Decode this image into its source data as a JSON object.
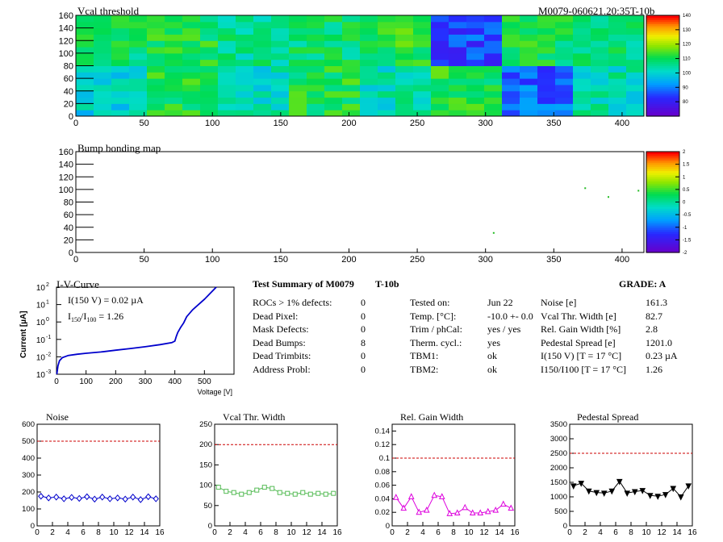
{
  "chart_data": [
    {
      "type": "heatmap",
      "title": "Vcal threshold",
      "module_label": "M0079-060621.20:35T-10b",
      "xlim": [
        0,
        416
      ],
      "ylim": [
        0,
        160
      ],
      "x_ticks": [
        0,
        50,
        100,
        150,
        200,
        250,
        300,
        350,
        400
      ],
      "y_ticks": [
        0,
        20,
        40,
        60,
        80,
        100,
        120,
        140,
        160
      ],
      "colorbar_ticks": [
        80,
        90,
        100,
        110,
        120,
        130,
        140
      ],
      "colorbar_range": [
        70,
        140
      ],
      "roc_means": {
        "top": [
          108,
          111,
          106,
          108,
          112,
          85,
          110,
          107
        ],
        "bottom": [
          100,
          111,
          102,
          111,
          103,
          111,
          88,
          103
        ]
      }
    },
    {
      "type": "heatmap",
      "title": "Bump bonding map",
      "xlim": [
        0,
        416
      ],
      "ylim": [
        0,
        160
      ],
      "x_ticks": [
        0,
        50,
        100,
        150,
        200,
        250,
        300,
        350,
        400
      ],
      "y_ticks": [
        0,
        20,
        40,
        60,
        80,
        100,
        120,
        140,
        160
      ],
      "colorbar_ticks": [
        -2,
        -1.5,
        -1,
        -0.5,
        0,
        0.5,
        1,
        1.5,
        2
      ],
      "colorbar_range": [
        -2,
        2
      ],
      "points": [
        [
          373,
          102
        ],
        [
          390,
          88
        ],
        [
          412,
          98
        ],
        [
          306,
          31
        ]
      ]
    },
    {
      "type": "line",
      "title": "I-V-Curve",
      "ylabel": "Current [µA]",
      "xlabel": "Voltage [V]",
      "yscale": "log",
      "xlim": [
        0,
        600
      ],
      "ylim": [
        0.001,
        100
      ],
      "x_ticks": [
        0,
        100,
        200,
        300,
        400,
        500
      ],
      "y_tick_exponents": [
        -3,
        -2,
        -1,
        0,
        1,
        2
      ],
      "annotation_current": "I(150 V) = 0.02 µA",
      "annotation_ratio_value": "1.26",
      "x": [
        1,
        5,
        10,
        20,
        40,
        70,
        100,
        150,
        200,
        250,
        300,
        350,
        390,
        400,
        405,
        410,
        420,
        430,
        440,
        460,
        500,
        540
      ],
      "y": [
        0.001,
        0.003,
        0.006,
        0.009,
        0.012,
        0.014,
        0.016,
        0.019,
        0.024,
        0.03,
        0.038,
        0.05,
        0.065,
        0.08,
        0.15,
        0.25,
        0.5,
        0.9,
        2,
        5,
        20,
        100
      ]
    },
    {
      "type": "line",
      "title": "Noise",
      "xlim": [
        0,
        16
      ],
      "ylim": [
        0,
        600
      ],
      "x_ticks": [
        0,
        2,
        4,
        6,
        8,
        10,
        12,
        14,
        16
      ],
      "y_ticks": [
        0,
        100,
        200,
        300,
        400,
        500,
        600
      ],
      "threshold": 500,
      "color": "#0000cc",
      "marker": "diamond",
      "x": [
        0.5,
        1.5,
        2.5,
        3.5,
        4.5,
        5.5,
        6.5,
        7.5,
        8.5,
        9.5,
        10.5,
        11.5,
        12.5,
        13.5,
        14.5,
        15.5
      ],
      "values": [
        175,
        165,
        170,
        160,
        168,
        162,
        172,
        158,
        170,
        160,
        165,
        158,
        170,
        155,
        172,
        160
      ]
    },
    {
      "type": "line",
      "title": "Vcal Thr. Width",
      "xlim": [
        0,
        16
      ],
      "ylim": [
        0,
        250
      ],
      "x_ticks": [
        0,
        2,
        4,
        6,
        8,
        10,
        12,
        14,
        16
      ],
      "y_ticks": [
        0,
        50,
        100,
        150,
        200,
        250
      ],
      "threshold": 200,
      "color": "#55bb55",
      "marker": "square",
      "x": [
        0.5,
        1.5,
        2.5,
        3.5,
        4.5,
        5.5,
        6.5,
        7.5,
        8.5,
        9.5,
        10.5,
        11.5,
        12.5,
        13.5,
        14.5,
        15.5
      ],
      "values": [
        95,
        85,
        82,
        78,
        82,
        88,
        95,
        92,
        82,
        80,
        78,
        82,
        78,
        80,
        78,
        80
      ]
    },
    {
      "type": "line",
      "title": "Rel. Gain Width",
      "xlim": [
        0,
        16
      ],
      "ylim": [
        0,
        0.15
      ],
      "x_ticks": [
        0,
        2,
        4,
        6,
        8,
        10,
        12,
        14,
        16
      ],
      "y_ticks": [
        0,
        0.02,
        0.04,
        0.06,
        0.08,
        0.1,
        0.12,
        0.14
      ],
      "threshold": 0.1,
      "color": "#dd00dd",
      "marker": "triangle",
      "x": [
        0.5,
        1.5,
        2.5,
        3.5,
        4.5,
        5.5,
        6.5,
        7.5,
        8.5,
        9.5,
        10.5,
        11.5,
        12.5,
        13.5,
        14.5,
        15.5
      ],
      "values": [
        0.042,
        0.026,
        0.043,
        0.02,
        0.023,
        0.045,
        0.043,
        0.018,
        0.019,
        0.027,
        0.019,
        0.019,
        0.021,
        0.023,
        0.032,
        0.026
      ]
    },
    {
      "type": "line",
      "title": "Pedestal Spread",
      "xlim": [
        0,
        16
      ],
      "ylim": [
        0,
        3500
      ],
      "x_ticks": [
        0,
        2,
        4,
        6,
        8,
        10,
        12,
        14,
        16
      ],
      "y_ticks": [
        0,
        500,
        1000,
        1500,
        2000,
        2500,
        3000,
        3500
      ],
      "threshold": 2500,
      "color": "#000000",
      "marker": "triangle-down",
      "x": [
        0.5,
        1.5,
        2.5,
        3.5,
        4.5,
        5.5,
        6.5,
        7.5,
        8.5,
        9.5,
        10.5,
        11.5,
        12.5,
        13.5,
        14.5,
        15.5
      ],
      "values": [
        1380,
        1470,
        1200,
        1150,
        1130,
        1200,
        1530,
        1130,
        1180,
        1220,
        1050,
        1020,
        1080,
        1290,
        1000,
        1380
      ]
    }
  ],
  "summary": {
    "title": "Test Summary of M0079",
    "subtitle": "T-10b",
    "grade": "GRADE:  A",
    "left": [
      {
        "label": "ROCs > 1% defects:",
        "value": "0"
      },
      {
        "label": "Dead Pixel:",
        "value": "0"
      },
      {
        "label": "Mask Defects:",
        "value": "0"
      },
      {
        "label": "Dead Bumps:",
        "value": "8"
      },
      {
        "label": "Dead Trimbits:",
        "value": "0"
      },
      {
        "label": "Address Probl:",
        "value": "0"
      }
    ],
    "middle": [
      {
        "label": "Tested on:",
        "value": "Jun 22"
      },
      {
        "label": "Temp. [°C]:",
        "value": "-10.0 +- 0.0"
      },
      {
        "label": "Trim / phCal:",
        "value": "yes / yes"
      },
      {
        "label": "Therm. cycl.:",
        "value": "yes"
      },
      {
        "label": "TBM1:",
        "value": "ok"
      },
      {
        "label": "TBM2:",
        "value": "ok"
      }
    ],
    "right": [
      {
        "label": "Noise [e]",
        "value": "161.3"
      },
      {
        "label": "Vcal Thr. Width [e]",
        "value": "82.7"
      },
      {
        "label": "Rel. Gain Width [%]",
        "value": "2.8"
      },
      {
        "label": "Pedestal Spread [e]",
        "value": "1201.0"
      },
      {
        "label": "I(150 V) [T = 17 °C]",
        "value": "0.23 µA"
      },
      {
        "label": "I150/I100  [T = 17 °C]",
        "value": "1.26"
      }
    ]
  }
}
